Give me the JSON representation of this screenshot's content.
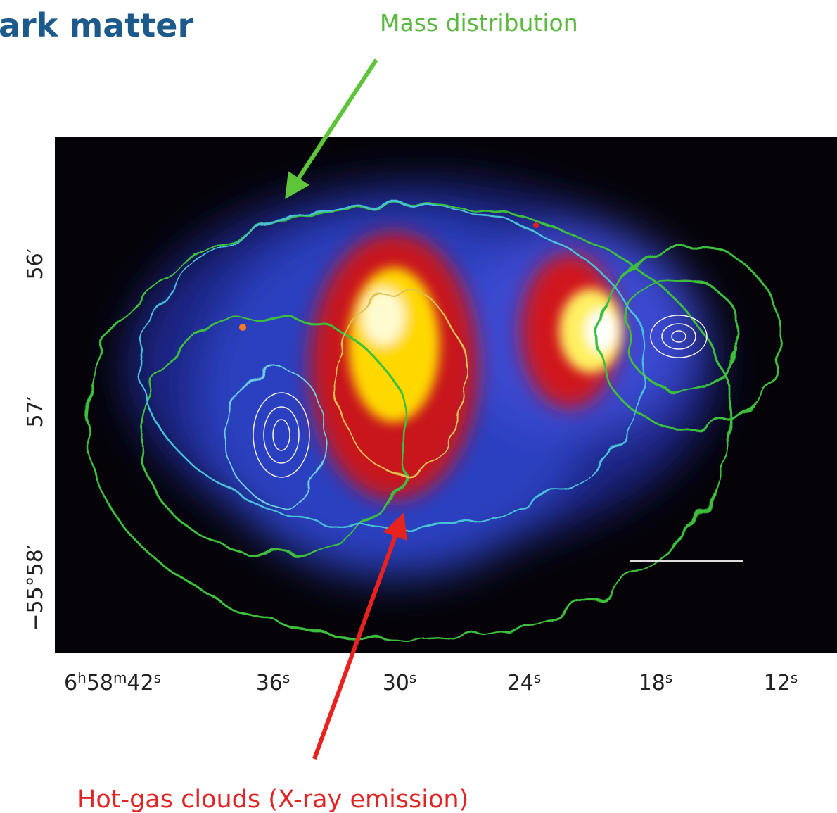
{
  "header": {
    "title": "ark matter"
  },
  "annotations": {
    "mass": "Mass distribution",
    "gas": "Hot-gas clouds (X-ray emission)"
  },
  "image": {
    "x_ticks": [
      [
        [
          "6",
          "h"
        ],
        [
          "58",
          "m"
        ],
        [
          "42",
          "s"
        ]
      ],
      [
        [
          "36",
          "s"
        ]
      ],
      [
        [
          "30",
          "s"
        ]
      ],
      [
        [
          "24",
          "s"
        ]
      ],
      [
        [
          "18",
          "s"
        ]
      ],
      [
        [
          "12",
          "s"
        ]
      ]
    ],
    "y_ticks": [
      "56′",
      "57′",
      "−55°58′"
    ]
  }
}
